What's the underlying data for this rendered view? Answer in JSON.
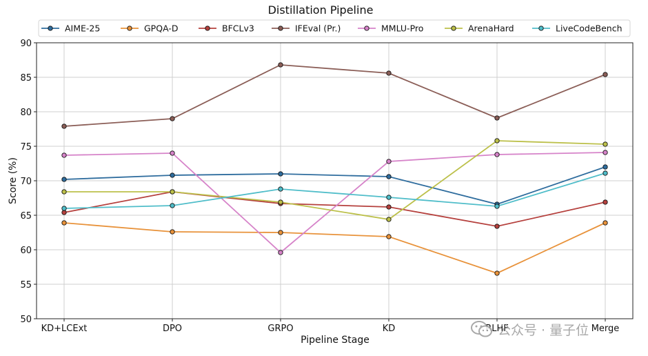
{
  "chart_data": {
    "type": "line",
    "title": "Distillation Pipeline",
    "xlabel": "Pipeline Stage",
    "ylabel": "Score (%)",
    "ylim": [
      50,
      90
    ],
    "yticks": [
      50,
      55,
      60,
      65,
      70,
      75,
      80,
      85,
      90
    ],
    "categories": [
      "KD+LCExt",
      "DPO",
      "GRPO",
      "KD",
      "RLHF",
      "Merge"
    ],
    "grid": true,
    "legend_position": "top",
    "series": [
      {
        "name": "AIME-25",
        "color": "#2f6d9e",
        "values": [
          70.2,
          70.8,
          71.0,
          70.6,
          66.6,
          72.0
        ]
      },
      {
        "name": "GPQA-D",
        "color": "#e8923a",
        "values": [
          63.9,
          62.6,
          62.5,
          61.9,
          56.6,
          63.9
        ]
      },
      {
        "name": "BFCLv3",
        "color": "#b5403d",
        "values": [
          65.4,
          68.4,
          66.7,
          66.2,
          63.4,
          66.9
        ]
      },
      {
        "name": "IFEval (Pr.)",
        "color": "#8b5e57",
        "values": [
          77.9,
          79.0,
          86.8,
          85.6,
          79.1,
          85.4
        ]
      },
      {
        "name": "MMLU-Pro",
        "color": "#d683c9",
        "values": [
          73.7,
          74.0,
          59.6,
          72.8,
          73.8,
          74.1
        ]
      },
      {
        "name": "ArenaHard",
        "color": "#bcc04a",
        "values": [
          68.4,
          68.4,
          66.9,
          64.4,
          75.8,
          75.3
        ]
      },
      {
        "name": "LiveCodeBench",
        "color": "#4fbdc9",
        "values": [
          66.0,
          66.4,
          68.8,
          67.6,
          66.3,
          71.1
        ]
      }
    ]
  },
  "watermark": {
    "text": "公众号 · 量子位"
  }
}
